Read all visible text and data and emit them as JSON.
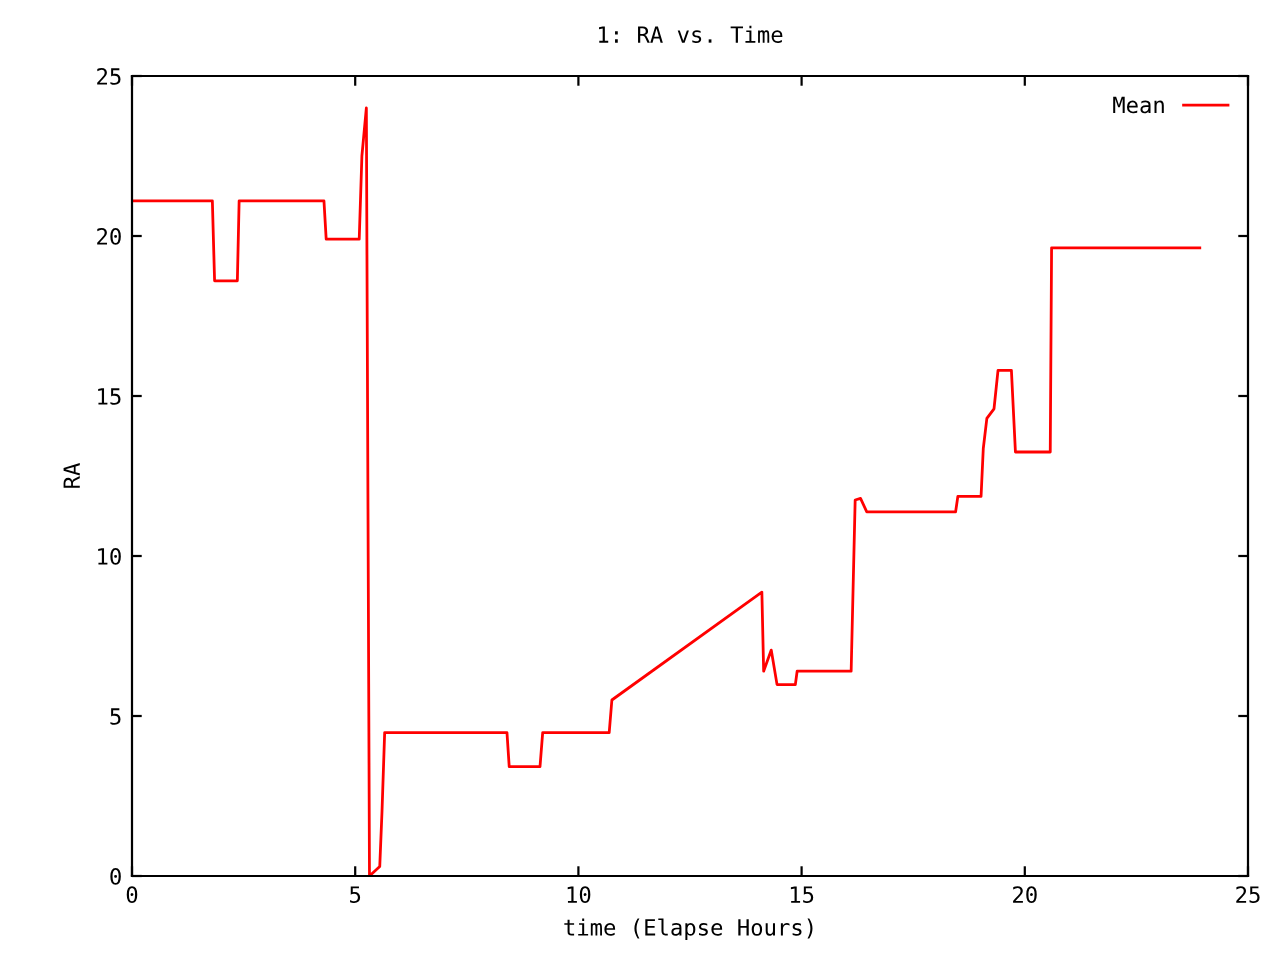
{
  "chart_data": {
    "type": "line",
    "title": "1: RA vs. Time",
    "xlabel": "time (Elapse Hours)",
    "ylabel": "RA",
    "xlim": [
      0,
      25
    ],
    "ylim": [
      0,
      25
    ],
    "xticks": [
      0,
      5,
      10,
      15,
      20,
      25
    ],
    "yticks": [
      0,
      5,
      10,
      15,
      20,
      25
    ],
    "grid": false,
    "legend": "top right",
    "marker": "none",
    "line_style": "solid",
    "series": [
      {
        "name": "Mean",
        "color": "#ff0000",
        "x": [
          0,
          1.8,
          1.85,
          2.36,
          2.4,
          4.3,
          4.35,
          5.09,
          5.15,
          5.25,
          5.32,
          5.55,
          5.6,
          5.66,
          8.4,
          8.45,
          9.14,
          9.2,
          10.69,
          10.75,
          14.11,
          14.15,
          14.32,
          14.45,
          14.86,
          14.9,
          16.11,
          16.2,
          16.32,
          16.46,
          18.45,
          18.5,
          19.02,
          19.07,
          19.15,
          19.31,
          19.4,
          19.7,
          19.79,
          20.57,
          20.6,
          23.92
        ],
        "values": [
          21.1,
          21.1,
          18.6,
          18.6,
          21.1,
          21.1,
          19.9,
          19.9,
          22.5,
          24.0,
          0.0,
          0.3,
          2.0,
          4.48,
          4.48,
          3.42,
          3.42,
          4.48,
          4.48,
          5.5,
          8.87,
          6.4,
          7.06,
          5.98,
          5.98,
          6.4,
          6.4,
          11.75,
          11.8,
          11.38,
          11.38,
          11.86,
          11.86,
          13.36,
          14.3,
          14.6,
          15.8,
          15.8,
          13.25,
          13.25,
          19.63,
          19.63
        ]
      }
    ]
  }
}
